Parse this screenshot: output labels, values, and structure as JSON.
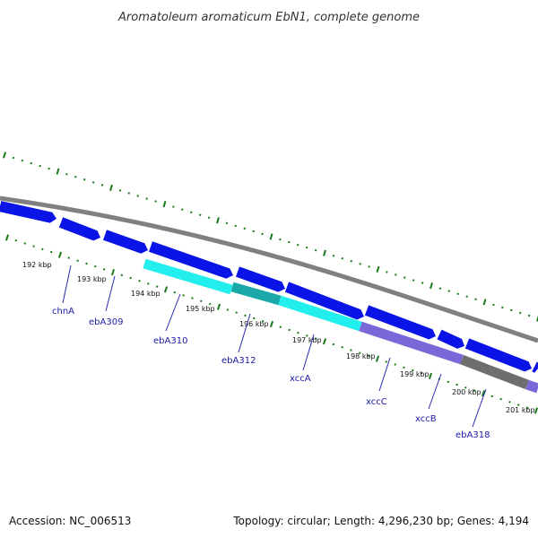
{
  "title": "Aromatoleum aromaticum EbN1, complete genome",
  "footer": {
    "accession": "Accession: NC_006513",
    "summary": "Topology: circular; Length: 4,296,230 bp; Genes: 4,194"
  },
  "kbp_labels": [
    "192 kbp",
    "193 kbp",
    "194 kbp",
    "195 kbp",
    "196 kbp",
    "197 kbp",
    "198 kbp",
    "199 kbp",
    "200 kbp",
    "201 kbp"
  ],
  "gene_labels": [
    "chnA",
    "ebA309",
    "ebA310",
    "ebA312",
    "xccA",
    "xccC",
    "xccB",
    "ebA318"
  ],
  "colors": {
    "backbone": "#808080",
    "forward_gene": "#0a14e6",
    "cyan": "#22eeee",
    "teal": "#1aa8a8",
    "purple": "#7a68d8",
    "gray_gene": "#6e6e6e",
    "ticks": "#1a7a1a",
    "label_lines": "#2a2ab0"
  },
  "icons": [
    "forward-arrow-icon"
  ]
}
